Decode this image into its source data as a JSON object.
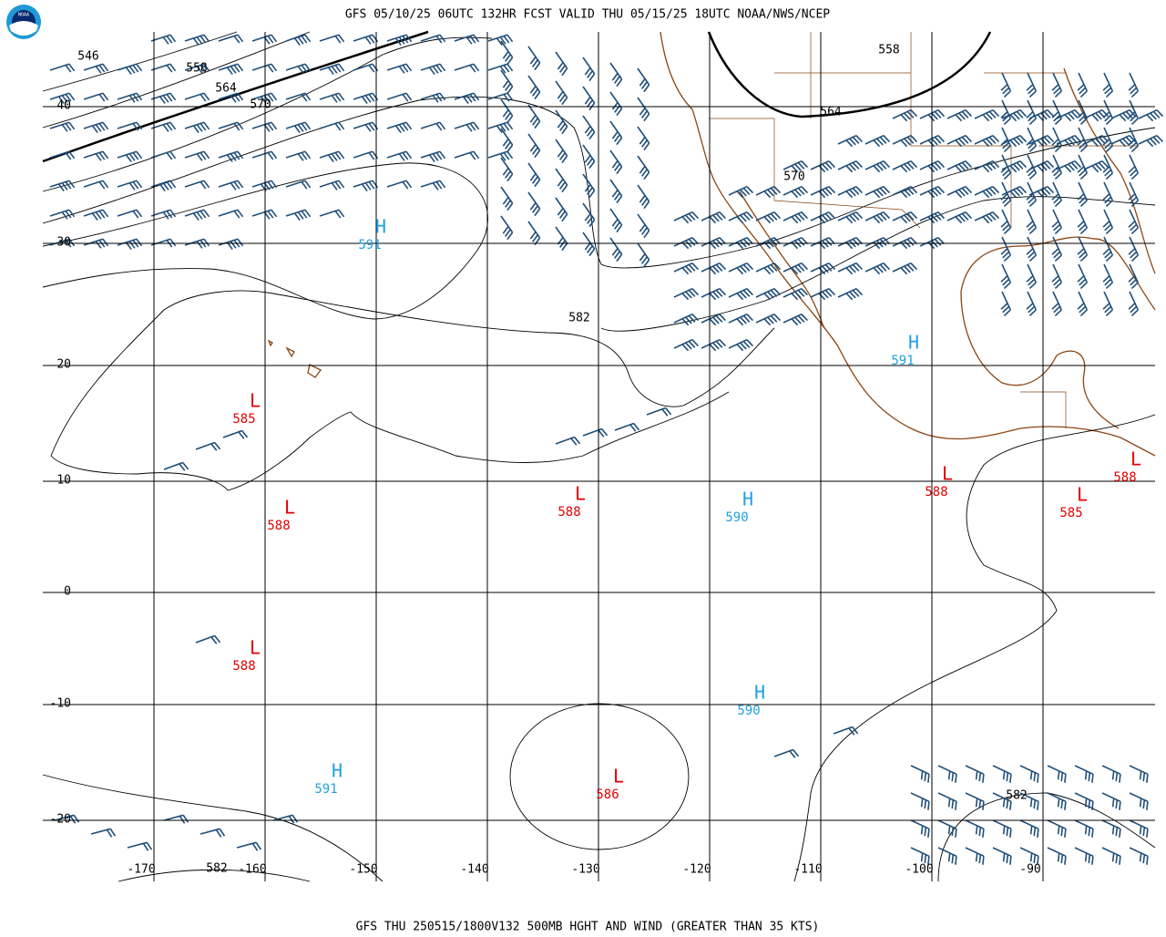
{
  "header": {
    "title": "GFS 05/10/25 06UTC 132HR FCST VALID THU 05/15/25 18UTC NOAA/NWS/NCEP"
  },
  "footer": {
    "title": "GFS THU 250515/1800V132 500MB HGHT AND WIND (GREATER THAN 35 KTS)"
  },
  "logo": {
    "label": "NOAA"
  },
  "lat_labels": [
    "40",
    "30",
    "20",
    "10",
    "0",
    "-10",
    "-20"
  ],
  "lon_labels": [
    "-170",
    "-160",
    "-150",
    "-140",
    "-130",
    "-120",
    "-110",
    "-100",
    "-90"
  ],
  "contour_labels": [
    "546",
    "558",
    "564",
    "570",
    "582",
    "558",
    "564",
    "570",
    "582",
    "582"
  ],
  "centers": [
    {
      "symbol": "H",
      "value": "591"
    },
    {
      "symbol": "L",
      "value": "585"
    },
    {
      "symbol": "L",
      "value": "588"
    },
    {
      "symbol": "L",
      "value": "588"
    },
    {
      "symbol": "H",
      "value": "590"
    },
    {
      "symbol": "L",
      "value": "588"
    },
    {
      "symbol": "L",
      "value": "585"
    },
    {
      "symbol": "L",
      "value": "588"
    },
    {
      "symbol": "H",
      "value": "591"
    },
    {
      "symbol": "L",
      "value": "588"
    },
    {
      "symbol": "H",
      "value": "590"
    },
    {
      "symbol": "H",
      "value": "591"
    },
    {
      "symbol": "L",
      "value": "586"
    }
  ]
}
